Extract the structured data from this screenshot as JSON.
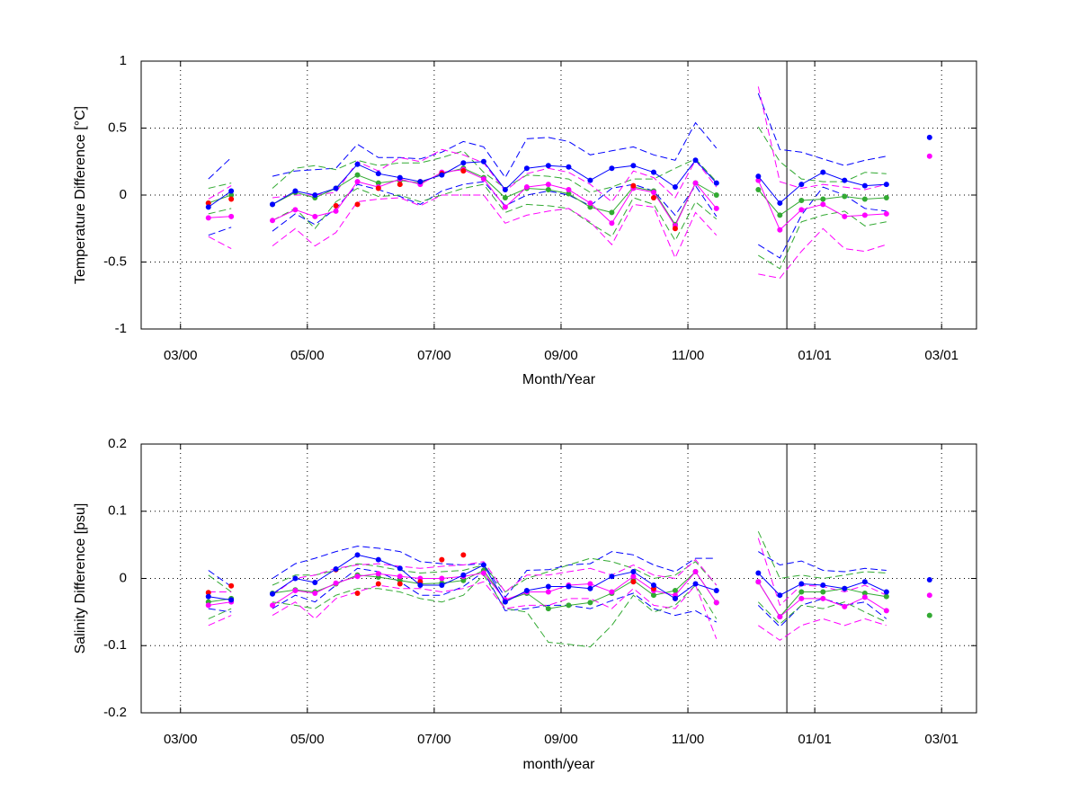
{
  "chart_data": [
    {
      "type": "line",
      "ylabel": "Temperature Difference [°C]",
      "xlabel": "Month/Year",
      "x": [
        3.44,
        3.8,
        4.13,
        4.45,
        4.81,
        5.12,
        5.45,
        5.79,
        6.12,
        6.46,
        6.78,
        7.12,
        7.46,
        7.78,
        8.12,
        8.46,
        8.8,
        9.12,
        9.46,
        9.8,
        10.14,
        10.46,
        10.8,
        11.12,
        11.45,
        11.79,
        12.11,
        12.45,
        12.79,
        13.13,
        13.47,
        13.79,
        14.13,
        14.47,
        14.81
      ],
      "xlim": [
        2.38,
        15.55
      ],
      "xticks": [
        {
          "value": 3,
          "label": "03/00"
        },
        {
          "value": 5,
          "label": "05/00"
        },
        {
          "value": 7,
          "label": "07/00"
        },
        {
          "value": 9,
          "label": "09/00"
        },
        {
          "value": 11,
          "label": "11/00"
        },
        {
          "value": 13,
          "label": "01/01"
        },
        {
          "value": 15,
          "label": "03/01"
        }
      ],
      "ylim": [
        -1,
        1
      ],
      "yticks": [
        -1,
        -0.5,
        0,
        0.5,
        1
      ],
      "grid": true,
      "vline_x": 12.56,
      "series": [
        {
          "color": "#0000ff",
          "line": "dashed",
          "marker": false,
          "values": [
            0.12,
            0.28,
            null,
            0.14,
            0.18,
            0.19,
            0.2,
            0.38,
            0.28,
            0.28,
            0.27,
            0.32,
            0.4,
            0.36,
            0.13,
            0.42,
            0.43,
            0.4,
            0.3,
            0.33,
            0.36,
            0.3,
            0.26,
            0.54,
            0.35,
            null,
            0.76,
            0.34,
            0.32,
            0.27,
            0.22,
            0.26,
            0.29,
            null,
            null
          ]
        },
        {
          "color": "#0000ff",
          "line": "dashed",
          "marker": false,
          "values": [
            -0.3,
            -0.24,
            null,
            -0.27,
            -0.14,
            -0.22,
            -0.1,
            0.08,
            0.04,
            -0.01,
            -0.07,
            0.03,
            0.08,
            0.1,
            -0.08,
            0.0,
            0.03,
            0.0,
            -0.08,
            0.05,
            0.08,
            0.03,
            -0.15,
            0.07,
            -0.16,
            null,
            -0.37,
            -0.47,
            -0.15,
            0.06,
            0.0,
            -0.1,
            -0.12,
            null,
            null
          ]
        },
        {
          "color": "#33aa33",
          "line": "dashed",
          "marker": false,
          "values": [
            0.05,
            0.09,
            null,
            0.05,
            0.2,
            0.22,
            0.19,
            0.26,
            0.22,
            0.24,
            0.24,
            0.28,
            0.33,
            0.17,
            0.05,
            0.15,
            0.14,
            0.12,
            0.02,
            0.06,
            0.12,
            0.12,
            0.2,
            0.27,
            0.1,
            null,
            0.51,
            0.25,
            0.12,
            0.1,
            0.1,
            0.17,
            0.16,
            null,
            null
          ]
        },
        {
          "color": "#33aa33",
          "line": "dashed",
          "marker": false,
          "values": [
            -0.14,
            -0.1,
            null,
            -0.19,
            -0.1,
            -0.25,
            -0.05,
            0.05,
            -0.01,
            0.0,
            -0.05,
            0.0,
            0.05,
            0.08,
            -0.13,
            -0.07,
            -0.08,
            -0.1,
            -0.21,
            -0.31,
            -0.02,
            -0.07,
            -0.34,
            -0.05,
            -0.18,
            null,
            -0.45,
            -0.55,
            -0.2,
            -0.15,
            -0.12,
            -0.23,
            -0.2,
            null,
            null
          ]
        },
        {
          "color": "#ff00ff",
          "line": "dashed",
          "marker": false,
          "values": [
            -0.03,
            0.07,
            null,
            -0.02,
            0.0,
            0.0,
            0.02,
            0.25,
            0.18,
            0.28,
            0.25,
            0.34,
            0.3,
            0.24,
            0.03,
            0.16,
            0.2,
            0.17,
            0.08,
            -0.05,
            0.18,
            0.13,
            -0.02,
            0.26,
            0.06,
            null,
            0.81,
            0.1,
            0.05,
            0.08,
            0.06,
            0.04,
            0.08,
            null,
            null
          ]
        },
        {
          "color": "#ff00ff",
          "line": "dashed",
          "marker": false,
          "values": [
            -0.31,
            -0.4,
            null,
            -0.38,
            -0.25,
            -0.38,
            -0.28,
            -0.05,
            -0.03,
            -0.02,
            -0.08,
            0.0,
            0.0,
            0.0,
            -0.21,
            -0.15,
            -0.12,
            -0.1,
            -0.2,
            -0.37,
            -0.07,
            -0.09,
            -0.47,
            -0.13,
            -0.3,
            null,
            -0.59,
            -0.62,
            -0.42,
            -0.25,
            -0.4,
            -0.42,
            -0.37,
            null,
            null
          ]
        },
        {
          "color": "#33aa33",
          "line": "solid",
          "marker": true,
          "values": [
            -0.06,
            0.0,
            null,
            -0.07,
            0.02,
            -0.02,
            0.05,
            0.15,
            0.09,
            0.11,
            0.09,
            0.16,
            0.2,
            0.13,
            -0.02,
            0.05,
            0.04,
            0.01,
            -0.09,
            -0.13,
            0.06,
            0.03,
            -0.22,
            0.09,
            0.0,
            null,
            0.04,
            -0.15,
            -0.04,
            -0.03,
            -0.01,
            -0.03,
            -0.02,
            null,
            null
          ]
        },
        {
          "color": "#ff00ff",
          "line": "solid",
          "marker": true,
          "values": [
            -0.17,
            -0.16,
            null,
            -0.19,
            -0.11,
            -0.16,
            -0.12,
            0.1,
            0.06,
            0.12,
            0.08,
            0.17,
            0.19,
            0.12,
            -0.09,
            0.06,
            0.08,
            0.04,
            -0.06,
            -0.21,
            0.05,
            0.02,
            -0.23,
            0.09,
            -0.1,
            null,
            0.11,
            -0.26,
            -0.11,
            -0.07,
            -0.16,
            -0.15,
            -0.14,
            null,
            0.29
          ]
        },
        {
          "color": "#ff0000",
          "line": "none",
          "marker": true,
          "values": [
            -0.06,
            -0.03,
            null,
            null,
            null,
            null,
            -0.08,
            -0.07,
            0.05,
            0.08,
            0.1,
            0.16,
            0.18,
            null,
            null,
            null,
            null,
            null,
            null,
            null,
            0.07,
            -0.02,
            -0.25,
            null,
            null,
            null,
            null,
            null,
            null,
            null,
            null,
            null,
            null,
            null,
            null
          ]
        },
        {
          "color": "#0000ff",
          "line": "solid",
          "marker": true,
          "values": [
            -0.09,
            0.03,
            null,
            -0.07,
            0.03,
            0.0,
            0.05,
            0.23,
            0.16,
            0.13,
            0.1,
            0.15,
            0.24,
            0.25,
            0.04,
            0.2,
            0.22,
            0.21,
            0.11,
            0.2,
            0.22,
            0.17,
            0.06,
            0.26,
            0.09,
            null,
            0.14,
            -0.06,
            0.08,
            0.17,
            0.11,
            0.07,
            0.08,
            null,
            0.43
          ]
        }
      ]
    },
    {
      "type": "line",
      "ylabel": "Salinity Difference [psu]",
      "xlabel": "month/year",
      "x": [
        3.44,
        3.8,
        4.13,
        4.45,
        4.81,
        5.12,
        5.45,
        5.79,
        6.12,
        6.46,
        6.78,
        7.12,
        7.46,
        7.78,
        8.12,
        8.46,
        8.8,
        9.12,
        9.46,
        9.8,
        10.14,
        10.46,
        10.8,
        11.12,
        11.45,
        11.79,
        12.11,
        12.45,
        12.79,
        13.13,
        13.47,
        13.79,
        14.13,
        14.47,
        14.81
      ],
      "xlim": [
        2.38,
        15.55
      ],
      "xticks": [
        {
          "value": 3,
          "label": "03/00"
        },
        {
          "value": 5,
          "label": "05/00"
        },
        {
          "value": 7,
          "label": "07/00"
        },
        {
          "value": 9,
          "label": "09/00"
        },
        {
          "value": 11,
          "label": "11/00"
        },
        {
          "value": 13,
          "label": "01/01"
        },
        {
          "value": 15,
          "label": "03/01"
        }
      ],
      "ylim": [
        -0.2,
        0.2
      ],
      "yticks": [
        -0.2,
        -0.1,
        0,
        0.1,
        0.2
      ],
      "grid": true,
      "vline_x": 12.56,
      "series": [
        {
          "color": "#0000ff",
          "line": "dashed",
          "marker": false,
          "values": [
            0.012,
            -0.012,
            null,
            0.0,
            0.022,
            0.03,
            0.04,
            0.048,
            0.045,
            0.04,
            0.025,
            0.022,
            0.02,
            0.022,
            -0.028,
            0.012,
            0.013,
            0.02,
            0.022,
            0.04,
            0.035,
            0.02,
            0.01,
            0.03,
            0.03,
            null,
            0.04,
            0.02,
            0.026,
            0.012,
            0.01,
            0.015,
            0.012,
            null,
            null
          ]
        },
        {
          "color": "#0000ff",
          "line": "dashed",
          "marker": false,
          "values": [
            -0.045,
            -0.05,
            null,
            -0.045,
            -0.025,
            -0.035,
            -0.01,
            0.015,
            0.01,
            -0.005,
            -0.025,
            -0.025,
            -0.012,
            0.01,
            -0.048,
            -0.045,
            -0.04,
            -0.04,
            -0.045,
            -0.033,
            -0.022,
            -0.045,
            -0.055,
            -0.048,
            -0.065,
            null,
            -0.04,
            -0.072,
            -0.04,
            -0.03,
            -0.04,
            -0.035,
            -0.06,
            null,
            null
          ]
        },
        {
          "color": "#33aa33",
          "line": "dashed",
          "marker": false,
          "values": [
            0.005,
            -0.02,
            null,
            -0.01,
            0.005,
            0.005,
            0.012,
            0.022,
            0.018,
            0.012,
            0.008,
            0.01,
            0.012,
            0.02,
            -0.02,
            0.0,
            0.01,
            0.02,
            0.03,
            0.025,
            0.015,
            0.0,
            0.005,
            0.025,
            -0.01,
            null,
            0.07,
            0.0,
            0.005,
            0.0,
            0.005,
            0.01,
            0.008,
            null,
            null
          ]
        },
        {
          "color": "#33aa33",
          "line": "dashed",
          "marker": false,
          "values": [
            -0.06,
            -0.045,
            null,
            -0.035,
            -0.04,
            -0.045,
            -0.025,
            -0.015,
            -0.015,
            -0.02,
            -0.03,
            -0.035,
            -0.025,
            0.005,
            -0.045,
            -0.05,
            -0.095,
            -0.098,
            -0.102,
            -0.07,
            -0.025,
            -0.05,
            -0.04,
            -0.01,
            -0.06,
            null,
            -0.035,
            -0.068,
            -0.04,
            -0.045,
            -0.035,
            -0.05,
            -0.065,
            null,
            null
          ]
        },
        {
          "color": "#ff00ff",
          "line": "dashed",
          "marker": false,
          "values": [
            -0.02,
            -0.02,
            null,
            -0.025,
            0.0,
            0.005,
            0.015,
            0.02,
            0.022,
            0.018,
            0.015,
            0.018,
            0.02,
            0.025,
            -0.02,
            0.005,
            0.005,
            0.01,
            0.015,
            0.005,
            0.02,
            0.005,
            0.0,
            0.028,
            -0.01,
            null,
            0.06,
            -0.04,
            -0.01,
            -0.012,
            -0.02,
            -0.01,
            -0.025,
            null,
            null
          ]
        },
        {
          "color": "#ff00ff",
          "line": "dashed",
          "marker": false,
          "values": [
            -0.07,
            -0.055,
            null,
            -0.055,
            -0.035,
            -0.06,
            -0.03,
            -0.02,
            -0.01,
            -0.015,
            -0.015,
            -0.02,
            -0.015,
            -0.005,
            -0.045,
            -0.04,
            -0.04,
            -0.03,
            -0.03,
            -0.045,
            -0.015,
            -0.04,
            -0.045,
            -0.01,
            -0.09,
            null,
            -0.07,
            -0.092,
            -0.07,
            -0.06,
            -0.07,
            -0.06,
            -0.07,
            null,
            null
          ]
        },
        {
          "color": "#33aa33",
          "line": "solid",
          "marker": true,
          "values": [
            -0.035,
            -0.03,
            null,
            -0.022,
            -0.017,
            -0.02,
            -0.008,
            0.005,
            0.002,
            -0.003,
            -0.008,
            -0.007,
            -0.003,
            0.012,
            -0.033,
            -0.022,
            -0.045,
            -0.04,
            -0.036,
            -0.022,
            -0.003,
            -0.025,
            -0.018,
            0.01,
            -0.036,
            null,
            -0.005,
            -0.057,
            -0.02,
            -0.02,
            -0.015,
            -0.022,
            -0.027,
            null,
            -0.055
          ]
        },
        {
          "color": "#ff00ff",
          "line": "solid",
          "marker": true,
          "values": [
            -0.04,
            -0.035,
            null,
            -0.04,
            -0.018,
            -0.022,
            -0.007,
            0.003,
            0.007,
            0.003,
            0.0,
            0.0,
            0.003,
            0.008,
            -0.032,
            -0.02,
            -0.02,
            -0.01,
            -0.008,
            -0.02,
            0.003,
            -0.018,
            -0.025,
            0.01,
            -0.036,
            null,
            -0.005,
            -0.057,
            -0.03,
            -0.03,
            -0.042,
            -0.028,
            -0.048,
            null,
            -0.025
          ]
        },
        {
          "color": "#ff0000",
          "line": "none",
          "marker": true,
          "values": [
            -0.021,
            -0.011,
            null,
            null,
            null,
            null,
            0.013,
            -0.022,
            -0.008,
            -0.008,
            -0.005,
            0.028,
            0.035,
            null,
            null,
            null,
            null,
            null,
            null,
            null,
            -0.005,
            -0.015,
            -0.03,
            null,
            null,
            null,
            null,
            null,
            null,
            null,
            null,
            null,
            null,
            null,
            null
          ]
        },
        {
          "color": "#0000ff",
          "line": "solid",
          "marker": true,
          "values": [
            -0.027,
            -0.032,
            null,
            -0.023,
            0.0,
            -0.006,
            0.014,
            0.035,
            0.028,
            0.015,
            -0.01,
            -0.01,
            0.005,
            0.02,
            -0.035,
            -0.018,
            -0.012,
            -0.012,
            -0.015,
            0.003,
            0.01,
            -0.01,
            -0.03,
            -0.008,
            -0.018,
            null,
            0.008,
            -0.025,
            -0.008,
            -0.01,
            -0.015,
            -0.005,
            -0.02,
            null,
            -0.002
          ]
        }
      ]
    }
  ]
}
